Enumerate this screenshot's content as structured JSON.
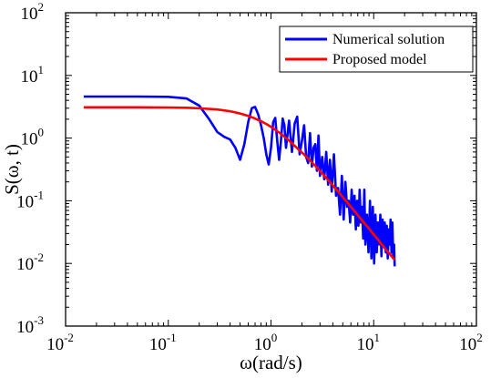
{
  "chart_data": {
    "type": "line",
    "title": "",
    "xlabel": "ω(rad/s)",
    "ylabel": "S(ω, t)",
    "xscale": "log",
    "yscale": "log",
    "xlim": [
      0.01,
      100
    ],
    "ylim": [
      0.001,
      100
    ],
    "x_ticks": [
      {
        "base": "10",
        "exp": "-2"
      },
      {
        "base": "10",
        "exp": "-1"
      },
      {
        "base": "10",
        "exp": "0"
      },
      {
        "base": "10",
        "exp": "1"
      },
      {
        "base": "10",
        "exp": "2"
      }
    ],
    "y_ticks": [
      {
        "base": "10",
        "exp": "-3"
      },
      {
        "base": "10",
        "exp": "-2"
      },
      {
        "base": "10",
        "exp": "-1"
      },
      {
        "base": "10",
        "exp": "0"
      },
      {
        "base": "10",
        "exp": "1"
      },
      {
        "base": "10",
        "exp": "2"
      }
    ],
    "grid": false,
    "legend_position": "top-right",
    "series": [
      {
        "name": "Numerical solution",
        "color": "#0000ff",
        "x": [
          0.015,
          0.05,
          0.1,
          0.15,
          0.2,
          0.25,
          0.3,
          0.35,
          0.4,
          0.45,
          0.5,
          0.55,
          0.6,
          0.65,
          0.7,
          0.75,
          0.8,
          0.85,
          0.9,
          0.95,
          1.0,
          1.05,
          1.1,
          1.15,
          1.2,
          1.25,
          1.3,
          1.35,
          1.4,
          1.5,
          1.6,
          1.7,
          1.8,
          1.9,
          2.0,
          2.1,
          2.2,
          2.3,
          2.4,
          2.5,
          2.6,
          2.7,
          2.8,
          2.9,
          3.0,
          3.15,
          3.3,
          3.45,
          3.6,
          3.75,
          3.9,
          4.1,
          4.3,
          4.5,
          4.7,
          4.9,
          5.1,
          5.3,
          5.5,
          5.7,
          5.9,
          6.1,
          6.3,
          6.5,
          6.7,
          6.9,
          7.1,
          7.3,
          7.5,
          7.7,
          7.9,
          8.1,
          8.3,
          8.6,
          8.9,
          9.2,
          9.5,
          9.8,
          10.1,
          10.4,
          10.7,
          11.0,
          11.3,
          11.6,
          11.9,
          12.2,
          12.5,
          12.8,
          13.1,
          13.4,
          13.7,
          14.0,
          14.3,
          14.6,
          14.9,
          15.2,
          15.5,
          15.8,
          16.0
        ],
        "y": [
          4.6,
          4.6,
          4.55,
          4.3,
          3.3,
          2.0,
          1.25,
          1.05,
          0.95,
          0.7,
          0.45,
          0.8,
          1.8,
          3.0,
          3.15,
          2.4,
          1.6,
          1.0,
          0.55,
          0.38,
          0.7,
          1.8,
          2.1,
          0.9,
          0.45,
          0.9,
          2.05,
          1.6,
          0.7,
          1.9,
          0.6,
          1.7,
          2.2,
          0.55,
          0.9,
          1.6,
          0.5,
          0.4,
          1.2,
          0.35,
          0.7,
          0.8,
          0.3,
          1.1,
          0.25,
          0.5,
          0.22,
          0.6,
          0.18,
          0.45,
          0.14,
          0.55,
          0.12,
          0.16,
          0.06,
          0.25,
          0.05,
          0.2,
          0.08,
          0.1,
          0.045,
          0.15,
          0.06,
          0.12,
          0.035,
          0.1,
          0.04,
          0.15,
          0.045,
          0.08,
          0.025,
          0.15,
          0.02,
          0.06,
          0.015,
          0.1,
          0.012,
          0.08,
          0.01,
          0.06,
          0.015,
          0.045,
          0.02,
          0.06,
          0.013,
          0.05,
          0.02,
          0.045,
          0.015,
          0.04,
          0.012,
          0.035,
          0.02,
          0.05,
          0.015,
          0.045,
          0.012,
          0.02,
          0.009
        ]
      },
      {
        "name": "Proposed model",
        "color": "#ff0000",
        "x": [
          0.015,
          0.02,
          0.03,
          0.05,
          0.07,
          0.1,
          0.15,
          0.2,
          0.3,
          0.4,
          0.5,
          0.6,
          0.7,
          0.8,
          0.9,
          1.0,
          1.2,
          1.5,
          2.0,
          2.5,
          3.0,
          3.5,
          4.0,
          5.0,
          6.0,
          7.0,
          8.0,
          9.0,
          10.0,
          11.0,
          12.0,
          13.0,
          14.0,
          15.0,
          16.0
        ],
        "y": [
          3.1,
          3.1,
          3.1,
          3.1,
          3.09,
          3.08,
          3.05,
          2.99,
          2.86,
          2.68,
          2.47,
          2.26,
          2.05,
          1.86,
          1.68,
          1.51,
          1.23,
          0.91,
          0.59,
          0.41,
          0.3,
          0.225,
          0.176,
          0.114,
          0.08,
          0.059,
          0.045,
          0.036,
          0.029,
          0.024,
          0.02,
          0.017,
          0.0148,
          0.0129,
          0.0114
        ]
      }
    ]
  }
}
